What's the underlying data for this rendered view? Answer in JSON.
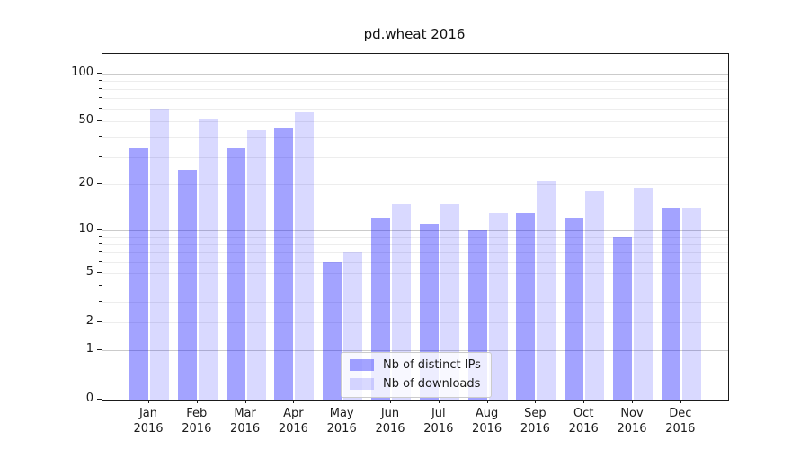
{
  "chart_data": {
    "type": "bar",
    "title": "pd.wheat 2016",
    "categories": [
      "Jan",
      "Feb",
      "Mar",
      "Apr",
      "May",
      "Jun",
      "Jul",
      "Aug",
      "Sep",
      "Oct",
      "Nov",
      "Dec"
    ],
    "year": "2016",
    "series": [
      {
        "name": "Nb of distinct IPs",
        "color": "rgba(0,0,255,0.36)",
        "values": [
          34,
          25,
          34,
          46,
          6,
          12,
          11,
          10,
          13,
          12,
          9,
          14
        ]
      },
      {
        "name": "Nb of downloads",
        "color": "rgba(0,0,255,0.15)",
        "values": [
          60,
          52,
          44,
          57,
          7,
          15,
          15,
          13,
          21,
          18,
          19,
          14
        ]
      }
    ],
    "yscale": "log1p",
    "ylim": [
      0,
      131
    ],
    "yticks": [
      0,
      1,
      2,
      5,
      10,
      20,
      50,
      100
    ],
    "minor_yticks": [
      3,
      4,
      6,
      7,
      8,
      9,
      30,
      40,
      60,
      70,
      80,
      90
    ],
    "major_gridlines": [
      1,
      10,
      100
    ],
    "grid": true,
    "legend_position": "lower center",
    "xlabel": "",
    "ylabel": ""
  }
}
